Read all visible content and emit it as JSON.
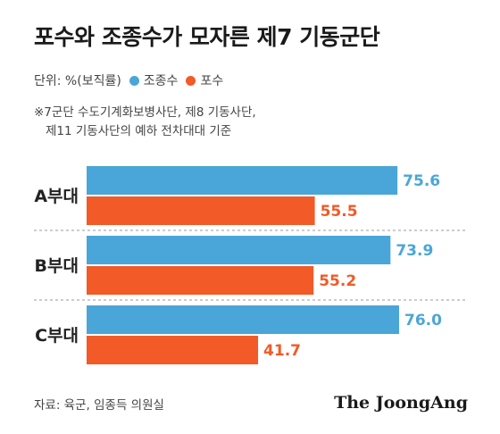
{
  "title": "포수와 조종수가 모자른 제7 기동군단",
  "unit_label": "단위: %(보직률)",
  "note": {
    "line1": "※7군단 수도기계화보병사단, 제8 기동사단,",
    "line2": "제11 기동사단의 예하 전차대대 기준"
  },
  "source": "자료: 육군, 임종득 의원실",
  "brand": "The JoongAng",
  "colors": {
    "driver": "#4aa6d8",
    "gunner": "#f25a27",
    "divider": "#9a9a9a"
  },
  "chart_data": {
    "type": "bar",
    "orientation": "horizontal",
    "categories": [
      "A부대",
      "B부대",
      "C부대"
    ],
    "series": [
      {
        "name": "조종수",
        "values": [
          75.6,
          73.9,
          76.0
        ],
        "labels": [
          "75.6",
          "73.9",
          "76.0"
        ]
      },
      {
        "name": "포수",
        "values": [
          55.5,
          55.2,
          41.7
        ],
        "labels": [
          "55.5",
          "55.2",
          "41.7"
        ]
      }
    ],
    "legend_position": "top-left",
    "grid": false
  }
}
